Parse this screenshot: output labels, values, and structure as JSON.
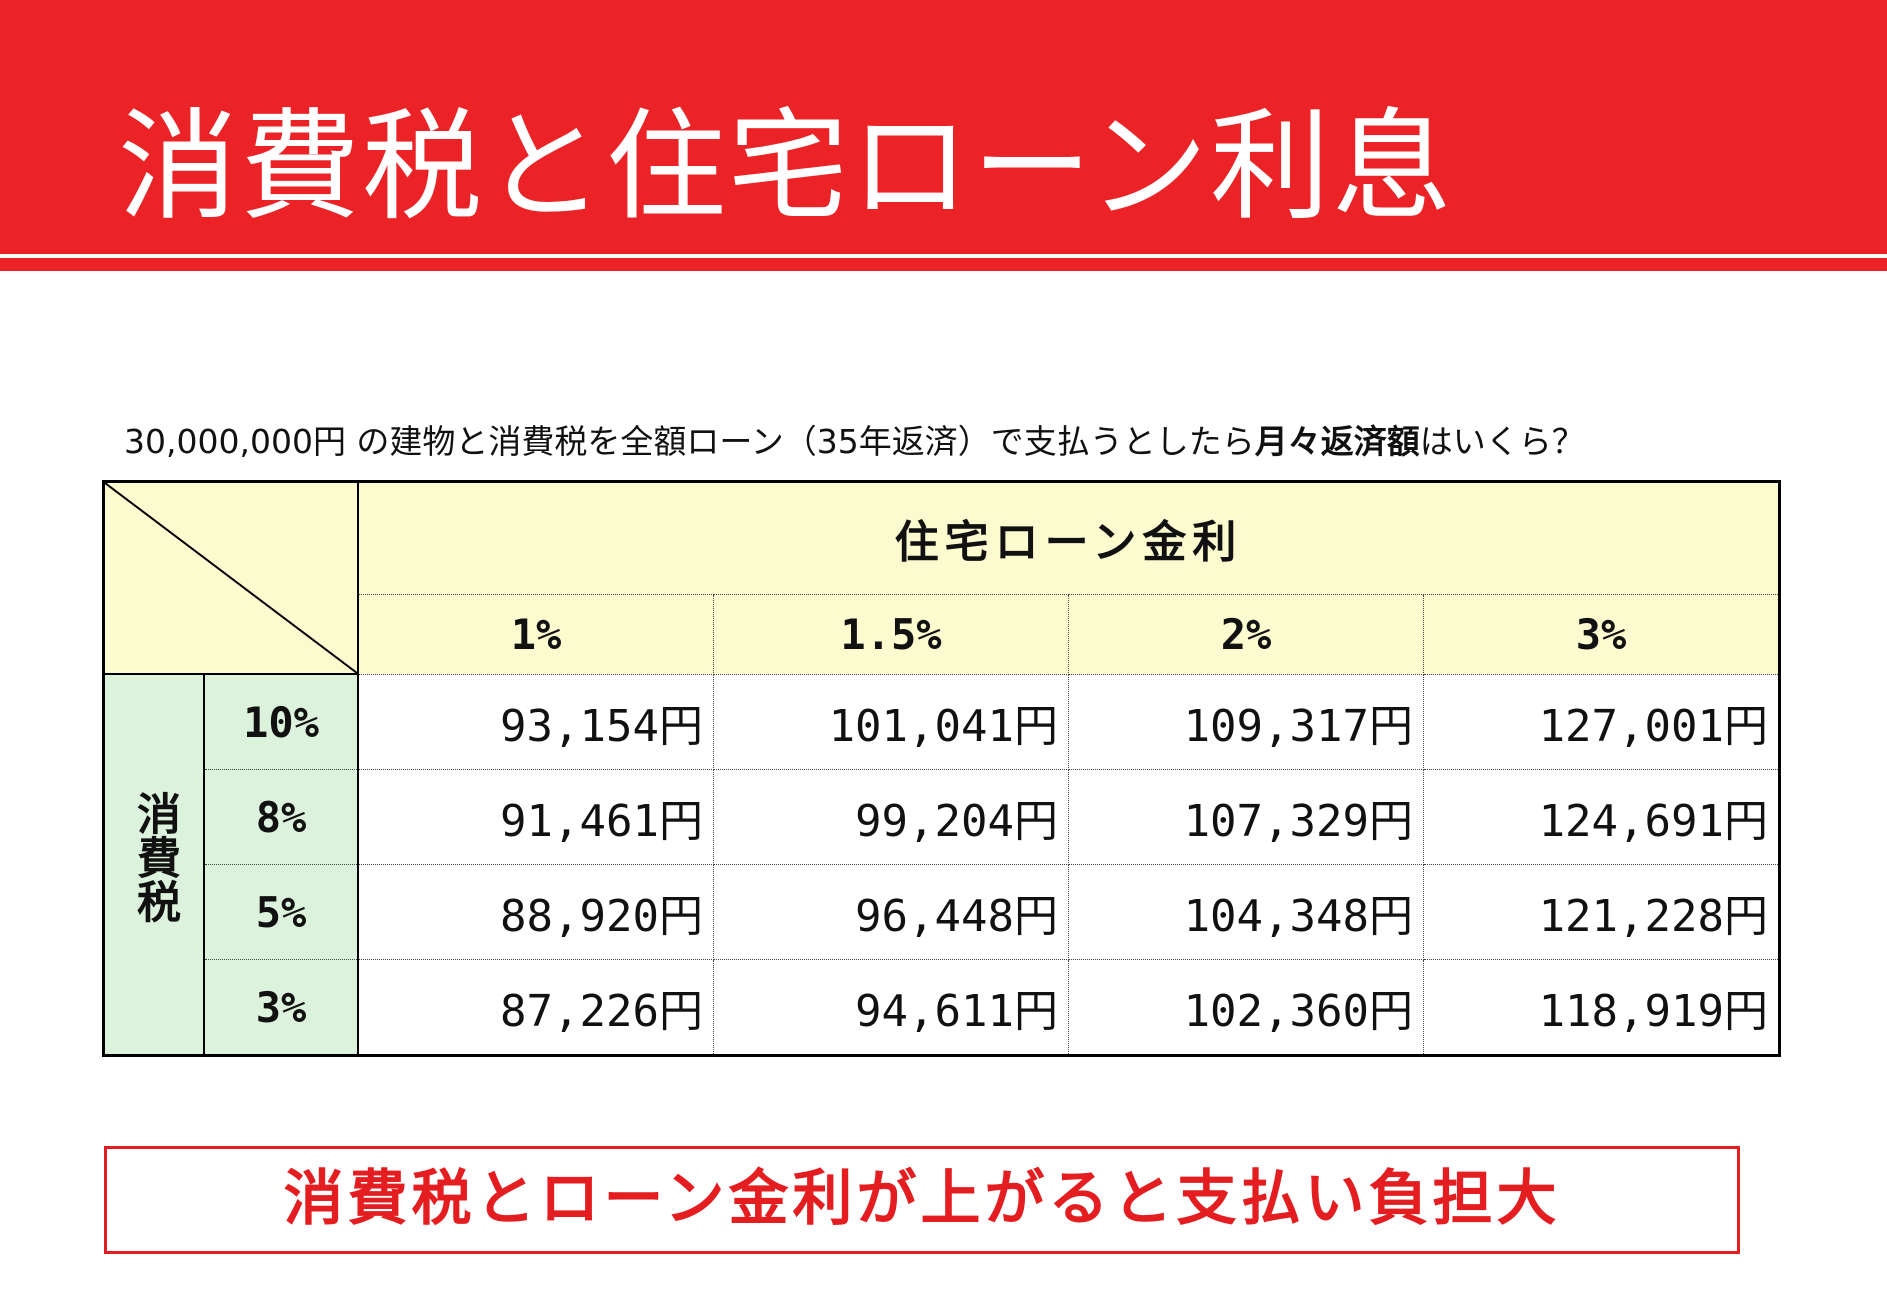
{
  "title": "消費税と住宅ローン利息",
  "question": {
    "prefix": "30,000,000円 の建物と消費税を全額ローン（35年返済）で支払うとしたら",
    "emphasis1": "月々返済額",
    "suffix": "はいくら？"
  },
  "table": {
    "header_title": "住宅ローン金利",
    "interest_rates": [
      "1%",
      "1.5%",
      "2%",
      "3%"
    ],
    "row_group_label": "消費税",
    "rows": [
      {
        "tax": "10%",
        "values": [
          "93,154円",
          "101,041円",
          "109,317円",
          "127,001円"
        ]
      },
      {
        "tax": "8%",
        "values": [
          "91,461円",
          "99,204円",
          "107,329円",
          "124,691円"
        ]
      },
      {
        "tax": "5%",
        "values": [
          "88,920円",
          "96,448円",
          "104,348円",
          "121,228円"
        ]
      },
      {
        "tax": "3%",
        "values": [
          "87,226円",
          "94,611円",
          "102,360円",
          "118,919円"
        ]
      }
    ]
  },
  "conclusion": "消費税とローン金利が上がると支払い負担大",
  "colors": {
    "header_red": "#ec2326",
    "header_yellow": "#fcfbd0",
    "side_green": "#dcf2dc",
    "conclusion_red": "#e41e20"
  }
}
